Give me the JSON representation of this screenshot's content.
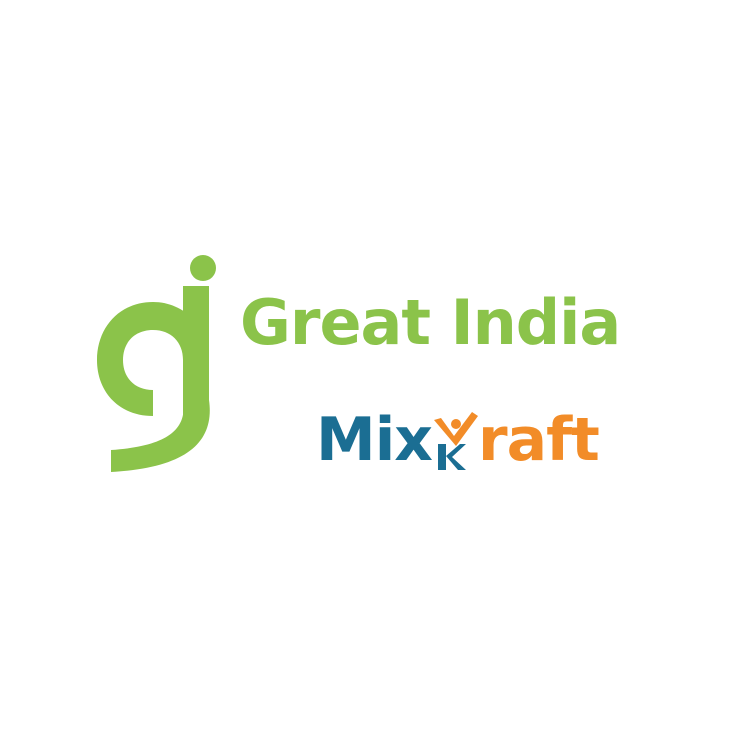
{
  "logo": {
    "name_text": "Great India",
    "sub_brand_part1": "Mix",
    "sub_brand_part2": "raft",
    "icon": "gj-monogram-icon",
    "k_icon": "person-check-k-icon"
  },
  "colors": {
    "green": "#8BC34A",
    "blue": "#1B6E93",
    "orange": "#F28C28",
    "background": "#ffffff"
  }
}
